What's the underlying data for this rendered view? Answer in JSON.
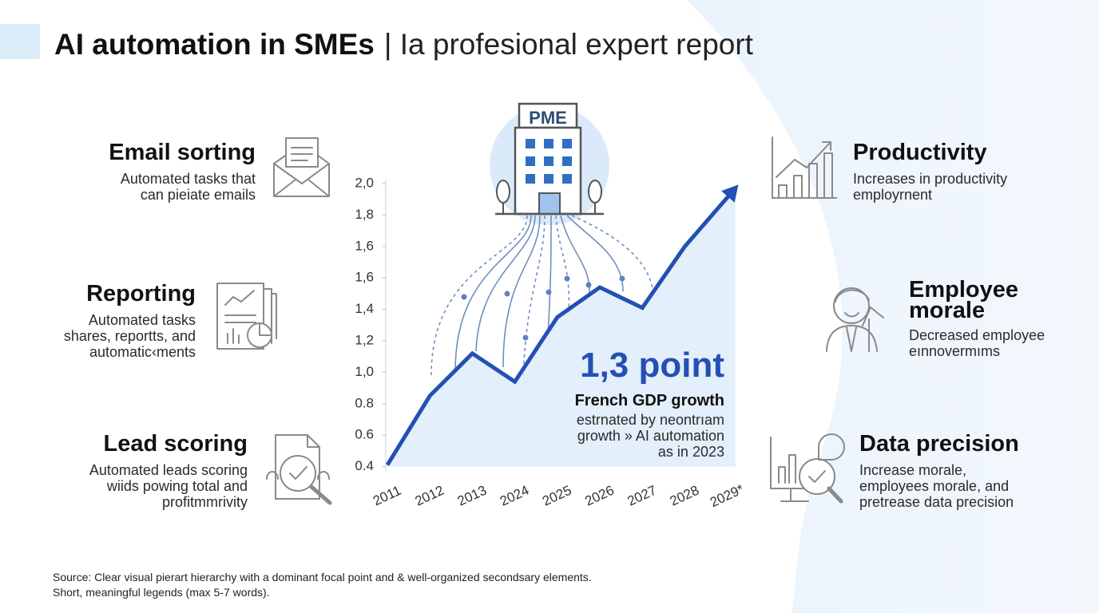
{
  "header": {
    "title": "AI automation in SMEs",
    "subtitle": "| Ia profesional expert report"
  },
  "features_left": [
    {
      "title": "Email sorting",
      "lines": [
        "Automated tasks that",
        "can pieiate emails"
      ]
    },
    {
      "title": "Reporting",
      "lines": [
        "Automated tasks",
        "shares, reportts, and",
        "automatic‹ments"
      ]
    },
    {
      "title": "Lead scoring",
      "lines": [
        "Automated leads scoring",
        "wiids powing total and",
        "profitmmrivity"
      ]
    }
  ],
  "features_right": [
    {
      "title": "Productivity",
      "lines": [
        "Increases in productivity",
        "employrnent"
      ]
    },
    {
      "title": "Employee morale",
      "lines": [
        "Decreased employee",
        "eınnovermıms"
      ]
    },
    {
      "title": "Data precision",
      "lines": [
        "Increase morale,",
        "employees morale, and",
        "pretrease data precision"
      ]
    }
  ],
  "building_label": "PME",
  "highlight": {
    "value": "1,3 point",
    "title": "French GDP growth",
    "lines": [
      "estrnated by neontrıam",
      "growth » AI automation",
      "as in 2023"
    ]
  },
  "chart_data": {
    "type": "line",
    "categories": [
      "2011",
      "2012",
      "2013",
      "2024",
      "2025",
      "2026",
      "2027",
      "2028",
      "2029*"
    ],
    "series": [
      {
        "name": "French GDP growth",
        "color": "#2450b4",
        "values": [
          0.41,
          0.85,
          1.12,
          0.94,
          1.35,
          1.54,
          1.41,
          1.6,
          1.97
        ]
      }
    ],
    "ylim": [
      0.4,
      2
    ],
    "yticks": [
      {
        "value": 2,
        "label": "2,0"
      },
      {
        "value": 1.8,
        "label": "1,8"
      },
      {
        "value": 1.6,
        "label": "1,6"
      },
      {
        "value": 1.6,
        "label": "1,6"
      },
      {
        "value": 1.4,
        "label": "1,4"
      },
      {
        "value": 1.2,
        "label": "1,2"
      },
      {
        "value": 1,
        "label": "1,0"
      },
      0.8,
      0.6,
      0.4
    ]
  },
  "source": [
    "Source: Clear visual pierart hierarchy with a dominant focal point and & well-organized secondsary elements.",
    "Short, meaningful legends (max 5-7 words)."
  ]
}
